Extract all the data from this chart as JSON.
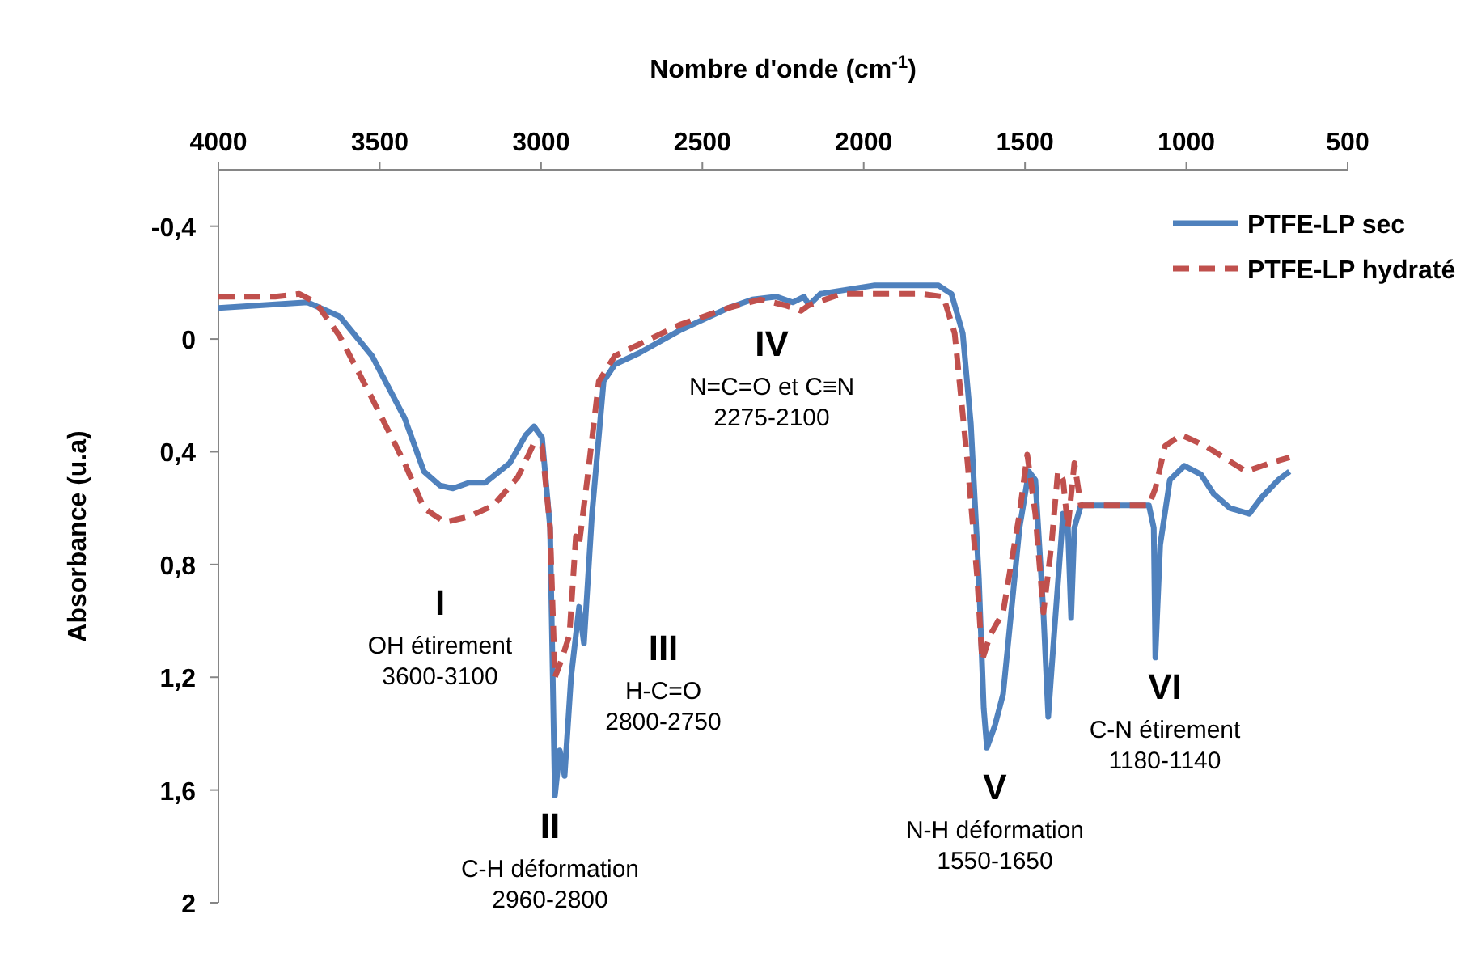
{
  "chart_data": {
    "type": "line",
    "xlabel": "Nombre d'onde (cm$^{-1}$)",
    "ylabel": "Absorbance (u.a)",
    "xlim": [
      4000,
      500
    ],
    "xticks": [
      4000,
      3500,
      3000,
      2500,
      2000,
      1500,
      1000,
      500
    ],
    "ylim": [
      2,
      -0.6
    ],
    "yticks": [
      {
        "value": -0.4,
        "label": "-0,4"
      },
      0,
      {
        "value": 0.4,
        "label": "0,4"
      },
      {
        "value": 0.8,
        "label": "0,8"
      },
      {
        "value": 1.2,
        "label": "1,2"
      },
      {
        "value": 1.6,
        "label": "1,6"
      },
      2
    ],
    "grid": false,
    "legend": "top right",
    "series": [
      {
        "name": "PTFE-LP sec",
        "color": "#4f81bd",
        "line_style": "solid",
        "x": [
          4000,
          3724,
          3624,
          3524,
          3423,
          3363,
          3313,
          3273,
          3223,
          3173,
          3097,
          3047,
          3022,
          2997,
          2972,
          2962,
          2957,
          2942,
          2927,
          2907,
          2882,
          2867,
          2842,
          2806,
          2771,
          2696,
          2571,
          2420,
          2345,
          2270,
          2220,
          2185,
          2170,
          2134,
          1969,
          1768,
          1728,
          1693,
          1668,
          1643,
          1628,
          1618,
          1593,
          1568,
          1517,
          1488,
          1468,
          1443,
          1428,
          1408,
          1382,
          1367,
          1357,
          1347,
          1327,
          1116,
          1101,
          1096,
          1081,
          1051,
          1006,
          955,
          915,
          865,
          805,
          765,
          715,
          680
        ],
        "values": [
          -0.11,
          -0.13,
          -0.08,
          0.06,
          0.28,
          0.47,
          0.52,
          0.53,
          0.51,
          0.51,
          0.44,
          0.34,
          0.31,
          0.35,
          0.67,
          1.31,
          1.62,
          1.46,
          1.55,
          1.2,
          0.95,
          1.08,
          0.62,
          0.15,
          0.09,
          0.05,
          -0.03,
          -0.11,
          -0.14,
          -0.15,
          -0.13,
          -0.15,
          -0.12,
          -0.16,
          -0.19,
          -0.19,
          -0.16,
          -0.02,
          0.3,
          0.85,
          1.31,
          1.45,
          1.37,
          1.26,
          0.67,
          0.47,
          0.5,
          0.97,
          1.34,
          1.02,
          0.62,
          0.67,
          0.99,
          0.67,
          0.59,
          0.59,
          0.67,
          1.13,
          0.73,
          0.5,
          0.45,
          0.48,
          0.55,
          0.6,
          0.62,
          0.56,
          0.5,
          0.47
        ]
      },
      {
        "name": "PTFE-LP hydraté",
        "color": "#c0504d",
        "line_style": "dashed",
        "x": [
          4000,
          3824,
          3749,
          3699,
          3624,
          3524,
          3423,
          3363,
          3298,
          3223,
          3147,
          3072,
          3022,
          2997,
          2972,
          2957,
          2937,
          2912,
          2892,
          2882,
          2857,
          2821,
          2771,
          2571,
          2420,
          2320,
          2245,
          2194,
          2170,
          2069,
          1819,
          1753,
          1718,
          1678,
          1648,
          1633,
          1608,
          1568,
          1517,
          1493,
          1468,
          1443,
          1418,
          1398,
          1382,
          1367,
          1347,
          1327,
          1116,
          1096,
          1066,
          1016,
          940,
          815,
          740,
          680
        ],
        "values": [
          -0.15,
          -0.15,
          -0.16,
          -0.13,
          -0.01,
          0.21,
          0.44,
          0.6,
          0.65,
          0.63,
          0.59,
          0.49,
          0.37,
          0.38,
          0.67,
          1.2,
          1.14,
          1.05,
          0.7,
          0.73,
          0.5,
          0.15,
          0.06,
          -0.05,
          -0.11,
          -0.14,
          -0.12,
          -0.1,
          -0.12,
          -0.16,
          -0.16,
          -0.15,
          -0.02,
          0.44,
          0.85,
          1.14,
          1.05,
          0.97,
          0.62,
          0.41,
          0.62,
          0.97,
          0.73,
          0.47,
          0.5,
          0.67,
          0.44,
          0.59,
          0.59,
          0.53,
          0.38,
          0.34,
          0.38,
          0.47,
          0.44,
          0.42
        ]
      }
    ],
    "annotations": [
      "I\nOH étirement\n3600-3100",
      "II\nC-H déformation\n2960-2800",
      "III\nH-C=O\n2800-2750",
      "IV\nN=C=O et C≡N\n2275-2100",
      "V\nN-H déformation\n1550-1650",
      "VI\nC-N étirement\n1180-1140"
    ]
  }
}
